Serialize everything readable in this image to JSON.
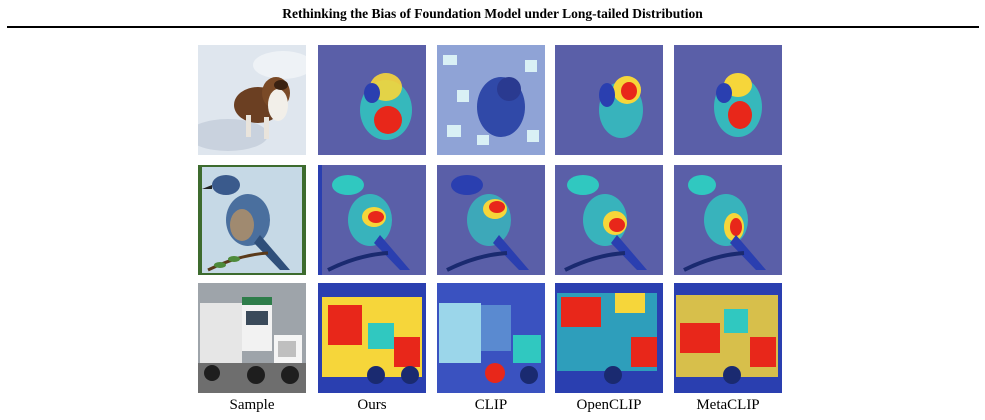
{
  "header": {
    "running_title": "Rethinking the Bias of Foundation Model under Long-tailed Distribution"
  },
  "figure": {
    "columns": [
      {
        "id": "sample",
        "label": "Sample"
      },
      {
        "id": "ours",
        "label": "Ours"
      },
      {
        "id": "clip",
        "label": "CLIP"
      },
      {
        "id": "openclip",
        "label": "OpenCLIP"
      },
      {
        "id": "metaclip",
        "label": "MetaCLIP"
      }
    ],
    "rows": [
      {
        "id": "dog",
        "subject": "dog in snow"
      },
      {
        "id": "bird",
        "subject": "blue jay on branch"
      },
      {
        "id": "truck",
        "subject": "white semi truck"
      }
    ],
    "colors": {
      "heat_hot": "#e8271a",
      "heat_warm": "#f6d63a",
      "heat_mid": "#30c8c0",
      "heat_cool": "#2a3fb0",
      "heat_bg": "#5a5fa8"
    }
  }
}
